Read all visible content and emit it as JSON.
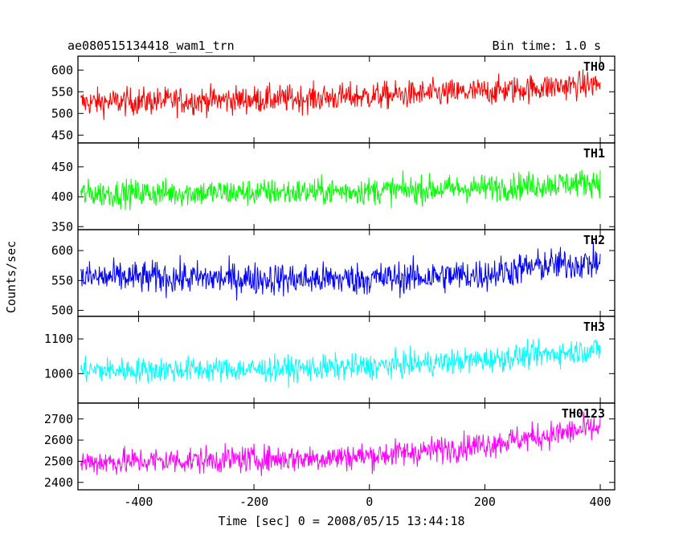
{
  "chart_data": {
    "type": "line",
    "title": "ae080515134418_wam1_trn",
    "subtitle": "Bin time: 1.0 s",
    "ylabel": "Counts/sec",
    "xlabel": "Time [sec] 0 = 2008/05/15 13:44:18",
    "xlim": [
      -505,
      425
    ],
    "x_ticks": [
      -400,
      -200,
      0,
      200,
      400
    ],
    "grid": false,
    "panels": [
      {
        "name": "TH0",
        "color": "#ff0000",
        "ylim": [
          432,
          632
        ],
        "y_ticks": [
          450,
          500,
          550,
          600
        ],
        "points": [
          [
            -500,
            525
          ],
          [
            -400,
            528
          ],
          [
            -300,
            530
          ],
          [
            -200,
            532
          ],
          [
            -100,
            535
          ],
          [
            0,
            540
          ],
          [
            100,
            545
          ],
          [
            200,
            550
          ],
          [
            300,
            560
          ],
          [
            400,
            568
          ]
        ],
        "noise": 35
      },
      {
        "name": "TH1",
        "color": "#00ff00",
        "ylim": [
          345,
          490
        ],
        "y_ticks": [
          350,
          400,
          450
        ],
        "points": [
          [
            -500,
            405
          ],
          [
            -400,
            406
          ],
          [
            -300,
            407
          ],
          [
            -200,
            407
          ],
          [
            -100,
            408
          ],
          [
            0,
            410
          ],
          [
            100,
            412
          ],
          [
            200,
            415
          ],
          [
            300,
            420
          ],
          [
            400,
            425
          ]
        ],
        "noise": 25
      },
      {
        "name": "TH2",
        "color": "#0000ff",
        "ylim": [
          490,
          635
        ],
        "y_ticks": [
          500,
          550,
          600
        ],
        "points": [
          [
            -500,
            555
          ],
          [
            -400,
            555
          ],
          [
            -300,
            554
          ],
          [
            -200,
            553
          ],
          [
            -100,
            552
          ],
          [
            0,
            553
          ],
          [
            100,
            556
          ],
          [
            200,
            560
          ],
          [
            300,
            575
          ],
          [
            400,
            580
          ]
        ],
        "noise": 30
      },
      {
        "name": "TH3",
        "color": "#00ffff",
        "ylim": [
          915,
          1165
        ],
        "y_ticks": [
          1000,
          1100
        ],
        "points": [
          [
            -500,
            1010
          ],
          [
            -400,
            1010
          ],
          [
            -300,
            1012
          ],
          [
            -200,
            1012
          ],
          [
            -100,
            1015
          ],
          [
            0,
            1020
          ],
          [
            100,
            1030
          ],
          [
            200,
            1040
          ],
          [
            300,
            1055
          ],
          [
            400,
            1070
          ]
        ],
        "noise": 40
      },
      {
        "name": "TH0123",
        "color": "#ff00ff",
        "ylim": [
          2365,
          2775
        ],
        "y_ticks": [
          2400,
          2500,
          2600,
          2700
        ],
        "points": [
          [
            -500,
            2495
          ],
          [
            -400,
            2500
          ],
          [
            -300,
            2505
          ],
          [
            -200,
            2510
          ],
          [
            -100,
            2515
          ],
          [
            0,
            2525
          ],
          [
            100,
            2550
          ],
          [
            200,
            2580
          ],
          [
            300,
            2620
          ],
          [
            400,
            2660
          ]
        ],
        "noise": 70
      }
    ]
  }
}
